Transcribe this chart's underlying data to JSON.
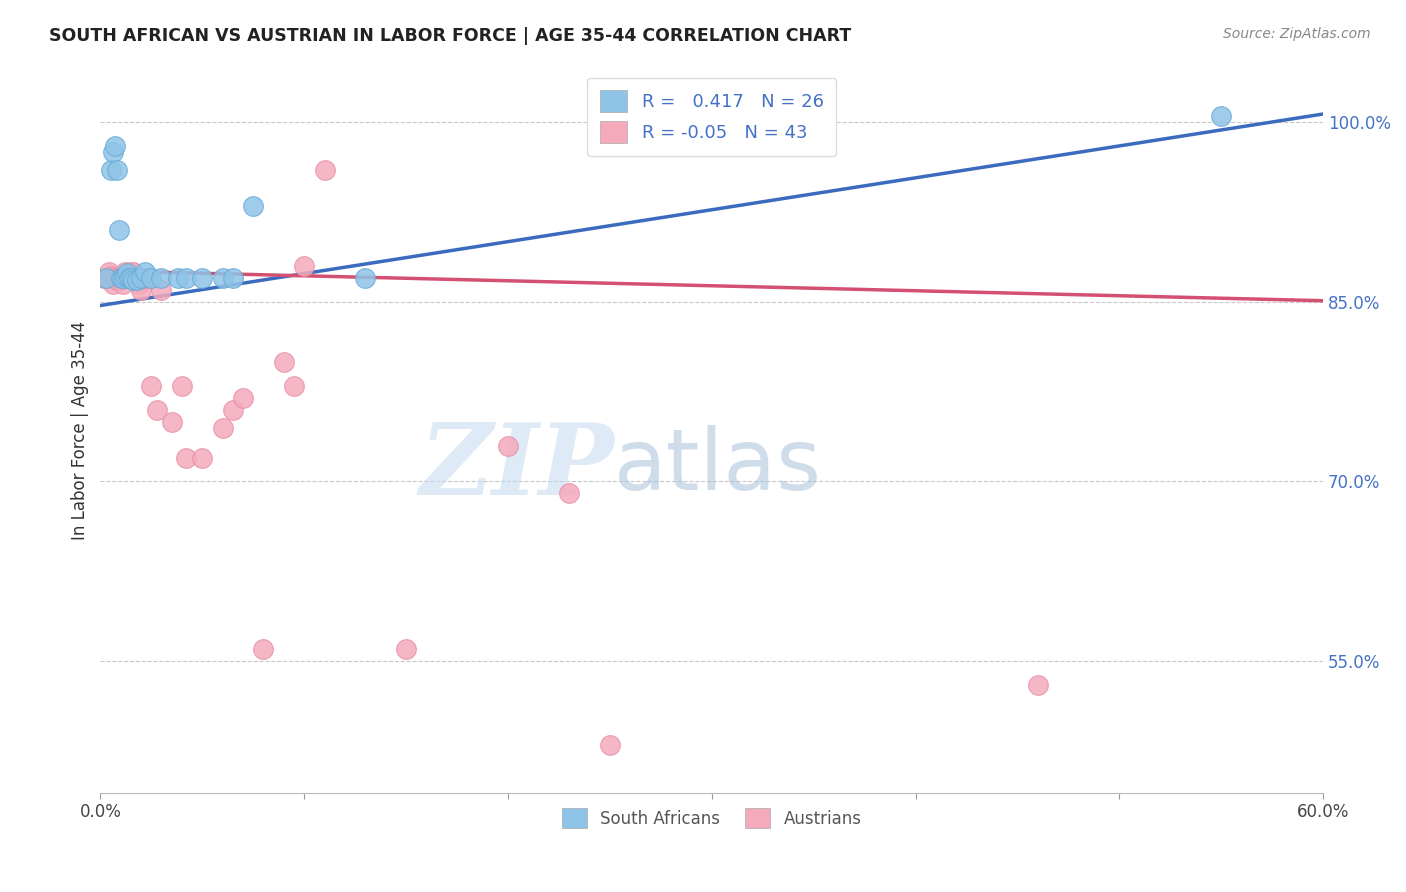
{
  "title": "SOUTH AFRICAN VS AUSTRIAN IN LABOR FORCE | AGE 35-44 CORRELATION CHART",
  "source": "Source: ZipAtlas.com",
  "ylabel": "In Labor Force | Age 35-44",
  "xlim": [
    0.0,
    0.6
  ],
  "ylim": [
    0.44,
    1.045
  ],
  "xticks": [
    0.0,
    0.1,
    0.2,
    0.3,
    0.4,
    0.5,
    0.6
  ],
  "xticklabels": [
    "0.0%",
    "",
    "",
    "",
    "",
    "",
    "60.0%"
  ],
  "right_yticks": [
    1.0,
    0.85,
    0.7,
    0.55
  ],
  "right_yticklabels": [
    "100.0%",
    "85.0%",
    "70.0%",
    "55.0%"
  ],
  "r_blue": 0.417,
  "n_blue": 26,
  "r_pink": -0.05,
  "n_pink": 43,
  "blue_color": "#8EC4E8",
  "pink_color": "#F4AABB",
  "blue_edge_color": "#6AAAD4",
  "pink_edge_color": "#E890A8",
  "blue_line_color": "#3A6BBF",
  "pink_line_color": "#D45070",
  "watermark_color": "#C8DCF0",
  "sa_x": [
    0.003,
    0.005,
    0.006,
    0.007,
    0.008,
    0.009,
    0.01,
    0.011,
    0.012,
    0.013,
    0.014,
    0.015,
    0.016,
    0.018,
    0.02,
    0.022,
    0.025,
    0.03,
    0.038,
    0.042,
    0.05,
    0.06,
    0.065,
    0.075,
    0.13,
    0.55
  ],
  "sa_y": [
    0.87,
    0.96,
    0.975,
    0.98,
    0.96,
    0.91,
    0.87,
    0.87,
    0.872,
    0.874,
    0.87,
    0.87,
    0.868,
    0.868,
    0.87,
    0.875,
    0.87,
    0.87,
    0.87,
    0.87,
    0.87,
    0.87,
    0.87,
    0.93,
    0.87,
    1.005
  ],
  "at_x": [
    0.002,
    0.003,
    0.004,
    0.005,
    0.006,
    0.006,
    0.007,
    0.008,
    0.009,
    0.01,
    0.011,
    0.012,
    0.013,
    0.014,
    0.015,
    0.016,
    0.017,
    0.018,
    0.019,
    0.02,
    0.021,
    0.022,
    0.023,
    0.025,
    0.028,
    0.03,
    0.035,
    0.04,
    0.042,
    0.05,
    0.06,
    0.065,
    0.07,
    0.08,
    0.09,
    0.095,
    0.1,
    0.11,
    0.15,
    0.2,
    0.25,
    0.46,
    0.23
  ],
  "at_y": [
    0.87,
    0.87,
    0.875,
    0.872,
    0.87,
    0.865,
    0.87,
    0.868,
    0.87,
    0.868,
    0.865,
    0.875,
    0.87,
    0.87,
    0.875,
    0.875,
    0.87,
    0.87,
    0.865,
    0.86,
    0.87,
    0.87,
    0.87,
    0.78,
    0.76,
    0.86,
    0.75,
    0.78,
    0.72,
    0.72,
    0.745,
    0.76,
    0.77,
    0.56,
    0.8,
    0.78,
    0.88,
    0.96,
    0.56,
    0.73,
    0.48,
    0.53,
    0.69
  ],
  "blue_line_x": [
    0.0,
    0.6
  ],
  "blue_line_y": [
    0.847,
    1.007
  ],
  "pink_line_x": [
    0.0,
    0.6
  ],
  "pink_line_y": [
    0.876,
    0.851
  ]
}
